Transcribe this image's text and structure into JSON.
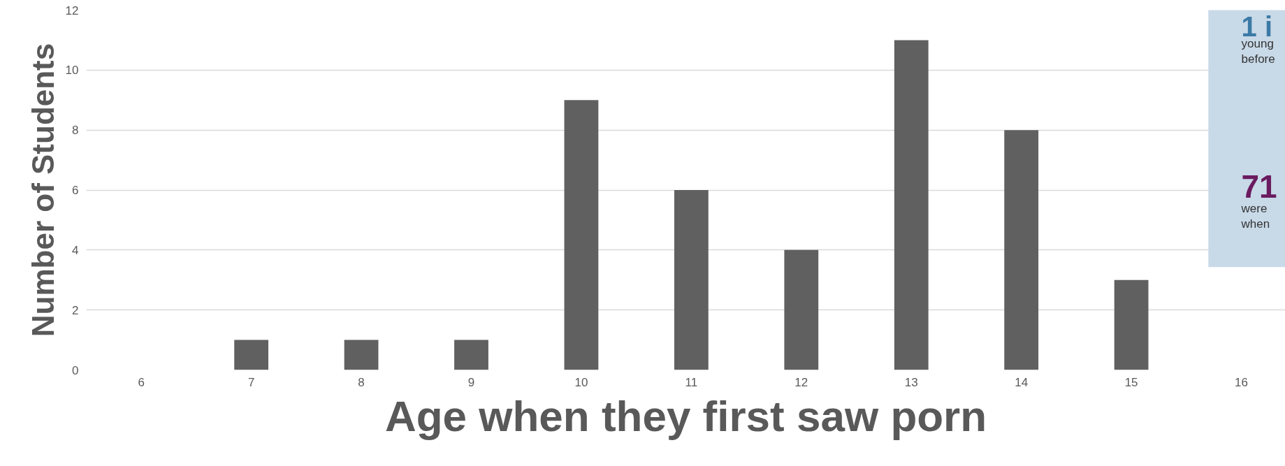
{
  "chart_data": {
    "type": "bar",
    "xlabel": "Age when they first saw porn",
    "ylabel": "Number of Students",
    "categories": [
      "6",
      "7",
      "8",
      "9",
      "10",
      "11",
      "12",
      "13",
      "14",
      "15",
      "16"
    ],
    "values": [
      0,
      1,
      1,
      1,
      9,
      6,
      4,
      11,
      8,
      3,
      0
    ],
    "color": "#606060",
    "ylim": [
      0,
      12
    ],
    "yticks": [
      0,
      2,
      4,
      6,
      8,
      10,
      12
    ],
    "grid": "y",
    "annotations": [
      "1 i",
      "young",
      "before",
      "71",
      "were",
      "when"
    ]
  }
}
